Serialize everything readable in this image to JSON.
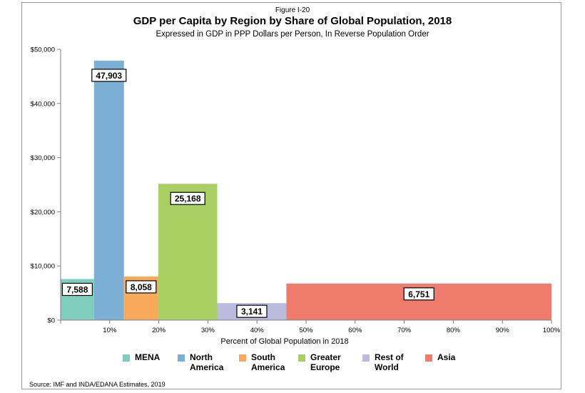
{
  "figure_label": "Figure I-20",
  "title": "GDP per Capita by Region by Share of Global Population, 2018",
  "subtitle": "Expressed in GDP in PPP Dollars per Person, In Reverse Population Order",
  "source": "Source: IMF and INDA/EDANA Estimates, 2019",
  "chart_data": {
    "type": "bar",
    "xlabel": "Percent of Global Population in 2018",
    "ylabel": "",
    "xlim": [
      0,
      100
    ],
    "ylim": [
      0,
      50000
    ],
    "yticks": [
      {
        "value": 0,
        "label": "$0"
      },
      {
        "value": 10000,
        "label": "$10,000"
      },
      {
        "value": 20000,
        "label": "$20,000"
      },
      {
        "value": 30000,
        "label": "$30,000"
      },
      {
        "value": 40000,
        "label": "$40,000"
      },
      {
        "value": 50000,
        "label": "$50,000"
      }
    ],
    "xticks": [
      {
        "value": 10,
        "label": "10%"
      },
      {
        "value": 20,
        "label": "20%"
      },
      {
        "value": 30,
        "label": "30%"
      },
      {
        "value": 40,
        "label": "40%"
      },
      {
        "value": 50,
        "label": "50%"
      },
      {
        "value": 60,
        "label": "60%"
      },
      {
        "value": 70,
        "label": "70%"
      },
      {
        "value": 80,
        "label": "80%"
      },
      {
        "value": 90,
        "label": "90%"
      },
      {
        "value": 100,
        "label": "100%"
      }
    ],
    "bars": [
      {
        "name": "MENA",
        "x_start": 0,
        "x_end": 6.8,
        "value": 7588,
        "label": "7,588",
        "color": "#7fcdbb"
      },
      {
        "name": "North America",
        "x_start": 6.8,
        "x_end": 12.9,
        "value": 47903,
        "label": "47,903",
        "color": "#7bafd4"
      },
      {
        "name": "South America",
        "x_start": 12.9,
        "x_end": 19.9,
        "value": 8058,
        "label": "8,058",
        "color": "#f7a95c"
      },
      {
        "name": "Greater Europe",
        "x_start": 19.9,
        "x_end": 31.9,
        "value": 25168,
        "label": "25,168",
        "color": "#a9cf62"
      },
      {
        "name": "Rest of World",
        "x_start": 31.9,
        "x_end": 46.0,
        "value": 3141,
        "label": "3,141",
        "color": "#bdbbdd"
      },
      {
        "name": "Asia",
        "x_start": 46.0,
        "x_end": 100,
        "value": 6751,
        "label": "6,751",
        "color": "#ef7b6d"
      }
    ],
    "legend": [
      {
        "label": "MENA",
        "color": "#7fcdbb"
      },
      {
        "label": "North America",
        "color": "#7bafd4"
      },
      {
        "label": "South America",
        "color": "#f7a95c"
      },
      {
        "label": "Greater Europe",
        "color": "#a9cf62"
      },
      {
        "label": "Rest of World",
        "color": "#bdbbdd"
      },
      {
        "label": "Asia",
        "color": "#ef7b6d"
      }
    ],
    "legend_position": "bottom",
    "grid": false
  }
}
